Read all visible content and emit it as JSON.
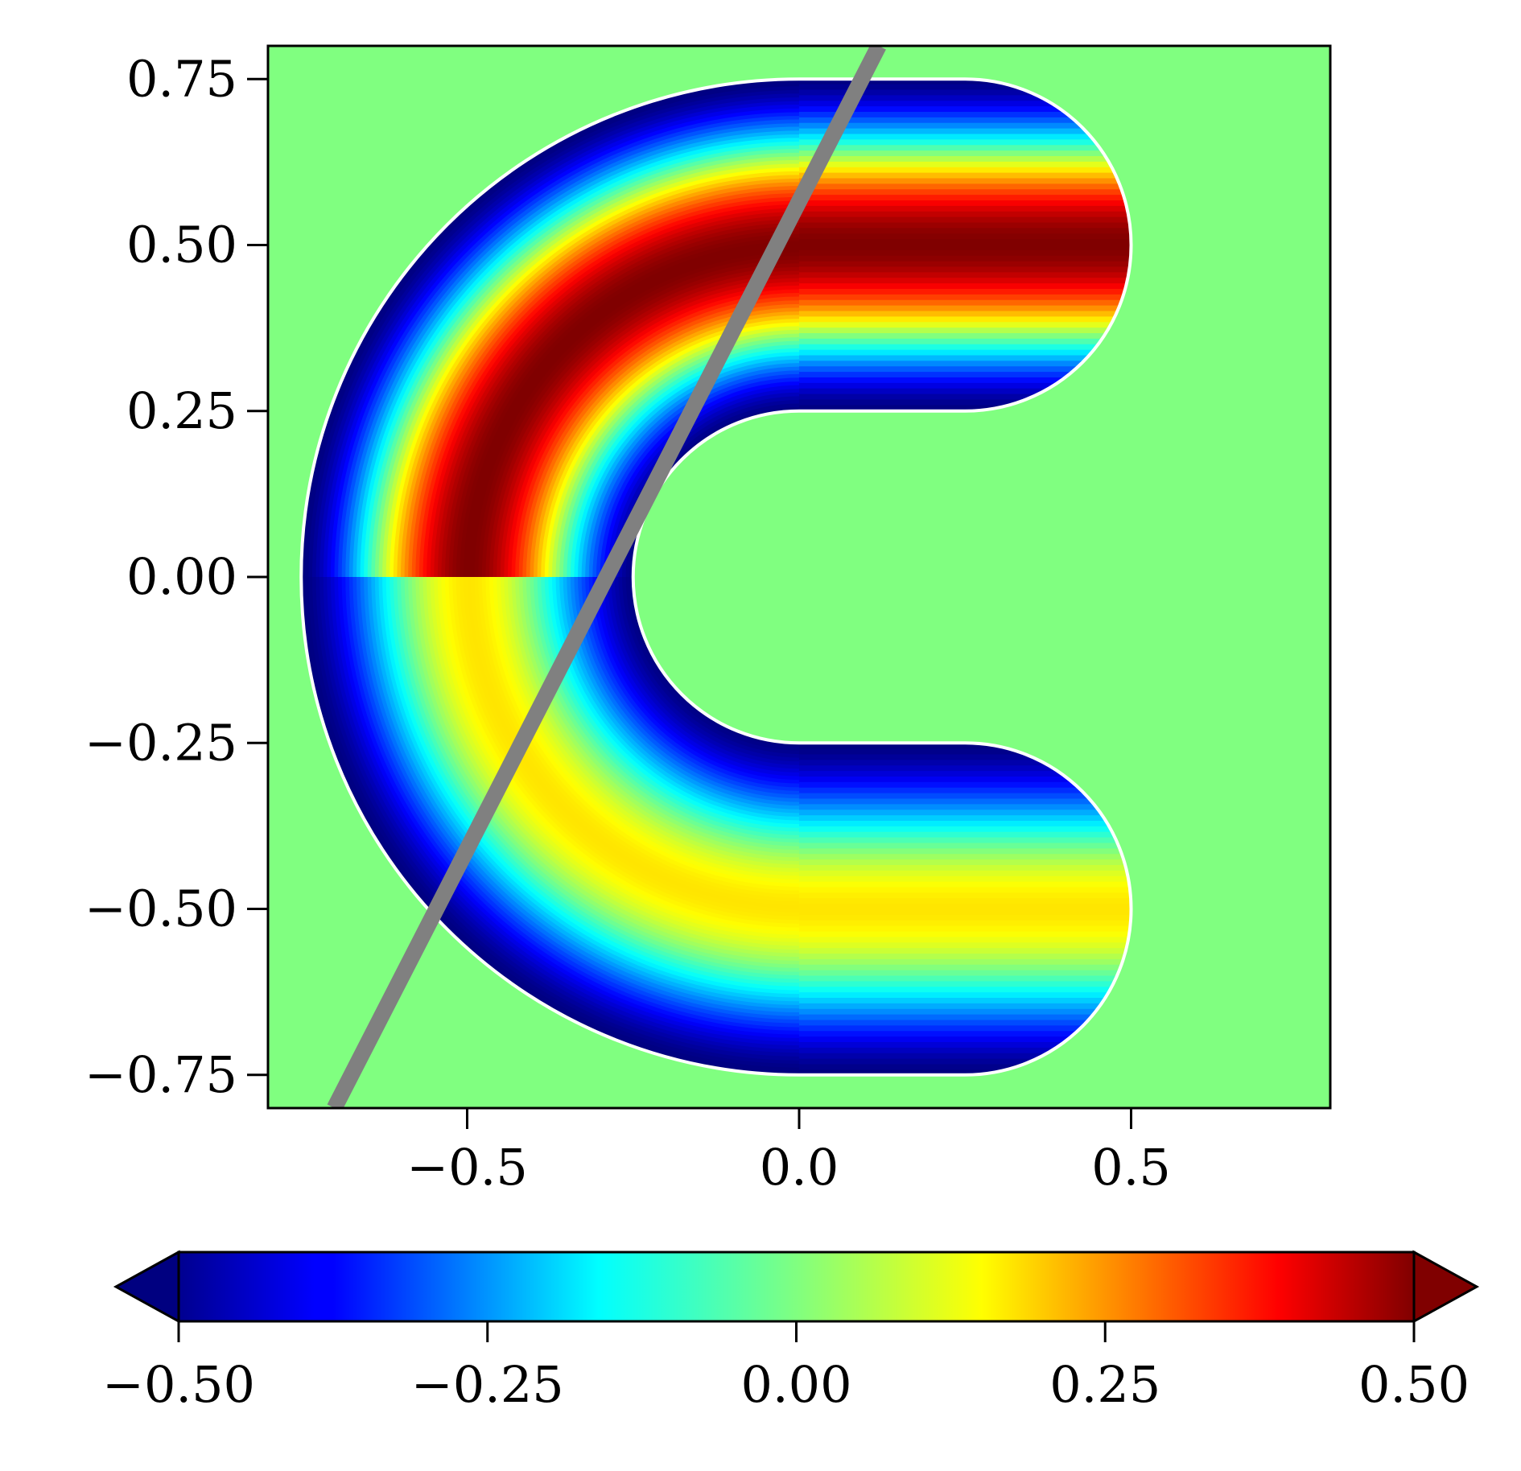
{
  "chart_data": {
    "type": "heatmap",
    "title": "",
    "xlabel": "",
    "ylabel": "",
    "colormap": "jet",
    "background_value": 0.0,
    "xlim": [
      -0.8,
      0.8
    ],
    "ylim": [
      -0.8,
      0.8
    ],
    "x_ticks": [
      -0.5,
      0.0,
      0.5
    ],
    "x_tick_labels": [
      "−0.5",
      "0.0",
      "0.5"
    ],
    "y_ticks": [
      0.75,
      0.5,
      0.25,
      0.0,
      -0.25,
      -0.5,
      -0.75
    ],
    "y_tick_labels": [
      "0.75",
      "0.50",
      "0.25",
      "0.00",
      "−0.25",
      "−0.50",
      "−0.75"
    ],
    "grid": false,
    "domain": {
      "shape": "C-shaped annulus",
      "outer_radius": 0.75,
      "inner_radius": 0.25,
      "opening_direction": "right",
      "arm_tip_center_y": [
        0.5,
        -0.5
      ],
      "arm_tip_x": 0.5
    },
    "field_profile": {
      "value_at_outer_edge": -0.5,
      "peak_radius": 0.5,
      "peak_value_upper_arm": 0.5,
      "peak_value_lower_arm": 0.15,
      "value_at_inner_edge": -0.5
    },
    "cut_line": {
      "color": "#808080",
      "points": [
        [
          -0.7,
          -0.8
        ],
        [
          0.12,
          0.8
        ]
      ]
    },
    "colorbar": {
      "orientation": "horizontal",
      "location": "bottom",
      "extend": "both",
      "vmin": -0.5,
      "vmax": 0.5,
      "ticks": [
        -0.5,
        -0.25,
        0.0,
        0.25,
        0.5
      ],
      "tick_labels": [
        "−0.50",
        "−0.25",
        "0.00",
        "0.25",
        "0.50"
      ]
    }
  }
}
